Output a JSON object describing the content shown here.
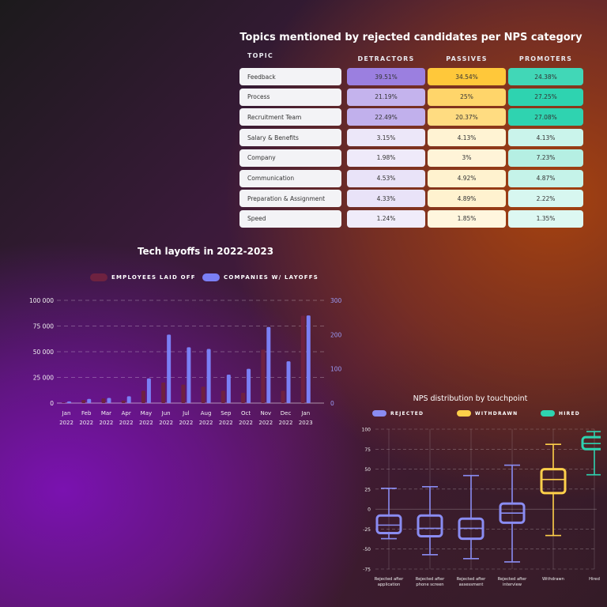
{
  "nps_table": {
    "title": "Topics mentioned by rejected candidates per NPS category",
    "headers": {
      "topic": "TOPIC",
      "detractors": "DETRACTORS",
      "passives": "PASSIVES",
      "promoters": "PROMOTERS"
    },
    "rows": [
      {
        "topic": "Feedback",
        "detractors": "39.51%",
        "passives": "34.54%",
        "promoters": "24.38%"
      },
      {
        "topic": "Process",
        "detractors": "21.19%",
        "passives": "25%",
        "promoters": "27.25%"
      },
      {
        "topic": "Recruitment Team",
        "detractors": "22.49%",
        "passives": "20.37%",
        "promoters": "27.08%"
      },
      {
        "topic": "Salary & Benefits",
        "detractors": "3.15%",
        "passives": "4.13%",
        "promoters": "4.13%"
      },
      {
        "topic": "Company",
        "detractors": "1.98%",
        "passives": "3%",
        "promoters": "7.23%"
      },
      {
        "topic": "Communication",
        "detractors": "4.53%",
        "passives": "4.92%",
        "promoters": "4.87%"
      },
      {
        "topic": "Preparation & Assignment",
        "detractors": "4.33%",
        "passives": "4.89%",
        "promoters": "2.22%"
      },
      {
        "topic": "Speed",
        "detractors": "1.24%",
        "passives": "1.85%",
        "promoters": "1.35%"
      }
    ],
    "colors": {
      "detractors": "#9b7fe0",
      "passives": "#ffc83a",
      "promoters": "#2ed3b0"
    }
  },
  "chart_data": [
    {
      "type": "table",
      "title": "Topics mentioned by rejected candidates per NPS category",
      "columns": [
        "TOPIC",
        "DETRACTORS",
        "PASSIVES",
        "PROMOTERS"
      ],
      "rows": [
        [
          "Feedback",
          39.51,
          34.54,
          24.38
        ],
        [
          "Process",
          21.19,
          25,
          27.25
        ],
        [
          "Recruitment Team",
          22.49,
          20.37,
          27.08
        ],
        [
          "Salary & Benefits",
          3.15,
          4.13,
          4.13
        ],
        [
          "Company",
          1.98,
          3,
          7.23
        ],
        [
          "Communication",
          4.53,
          4.92,
          4.87
        ],
        [
          "Preparation & Assignment",
          4.33,
          4.89,
          2.22
        ],
        [
          "Speed",
          1.24,
          1.85,
          1.35
        ]
      ]
    },
    {
      "type": "bar",
      "title": "Tech layoffs in 2022-2023",
      "categories": [
        [
          "Jan",
          "2022"
        ],
        [
          "Feb",
          "2022"
        ],
        [
          "Mar",
          "2022"
        ],
        [
          "Apr",
          "2022"
        ],
        [
          "May",
          "2022"
        ],
        [
          "Jun",
          "2022"
        ],
        [
          "Jul",
          "2022"
        ],
        [
          "Aug",
          "2022"
        ],
        [
          "Sep",
          "2022"
        ],
        [
          "Oct",
          "2022"
        ],
        [
          "Nov",
          "2022"
        ],
        [
          "Dec",
          "2022"
        ],
        [
          "Jan",
          "2023"
        ]
      ],
      "series": [
        {
          "name": "EMPLOYEES LAID OFF",
          "axis": "left",
          "color": "#6e2240",
          "values": [
            500,
            3000,
            4500,
            2500,
            12000,
            20000,
            18000,
            16000,
            12000,
            10000,
            52000,
            12000,
            85000
          ]
        },
        {
          "name": "COMPANIES W/ LAYOFFS",
          "axis": "right",
          "color": "#7b7ff5",
          "values": [
            5,
            12,
            15,
            20,
            72,
            200,
            163,
            158,
            83,
            100,
            222,
            122,
            256
          ]
        }
      ],
      "y_left": {
        "range": [
          0,
          100000
        ],
        "ticks": [
          "0",
          "25 000",
          "50 000",
          "75 000",
          "100 000"
        ]
      },
      "y_right": {
        "range": [
          0,
          300
        ],
        "ticks": [
          "0",
          "100",
          "200",
          "300"
        ]
      },
      "legend_position": "top"
    },
    {
      "type": "box",
      "title": "NPS distribution by touchpoint",
      "legend": [
        {
          "name": "REJECTED",
          "color": "#8a8cf2"
        },
        {
          "name": "WITHDRAWN",
          "color": "#ffd04a"
        },
        {
          "name": "HIRED",
          "color": "#2ed3b0"
        }
      ],
      "y_range": [
        -75,
        100
      ],
      "y_ticks": [
        "100",
        "75",
        "50",
        "25",
        "0",
        "-25",
        "-50",
        "-75"
      ],
      "boxes": [
        {
          "label": [
            "Rejected after",
            "application"
          ],
          "group": "REJECTED",
          "min": -37,
          "q1": -30,
          "median": -20,
          "q3": -8,
          "max": 26
        },
        {
          "label": [
            "Rejected after",
            "phone screen"
          ],
          "group": "REJECTED",
          "min": -57,
          "q1": -34,
          "median": -24,
          "q3": -8,
          "max": 28
        },
        {
          "label": [
            "Rejected after",
            "assessment"
          ],
          "group": "REJECTED",
          "min": -62,
          "q1": -37,
          "median": -24,
          "q3": -12,
          "max": 42
        },
        {
          "label": [
            "Rejected after",
            "interview"
          ],
          "group": "REJECTED",
          "min": -66,
          "q1": -17,
          "median": -5,
          "q3": 7,
          "max": 55
        },
        {
          "label": [
            "Withdrawn"
          ],
          "group": "WITHDRAWN",
          "min": -33,
          "q1": 20,
          "median": 37,
          "q3": 50,
          "max": 81
        },
        {
          "label": [
            "Hired"
          ],
          "group": "HIRED",
          "min": 43,
          "q1": 75,
          "median": 82,
          "q3": 90,
          "max": 97
        }
      ]
    }
  ]
}
